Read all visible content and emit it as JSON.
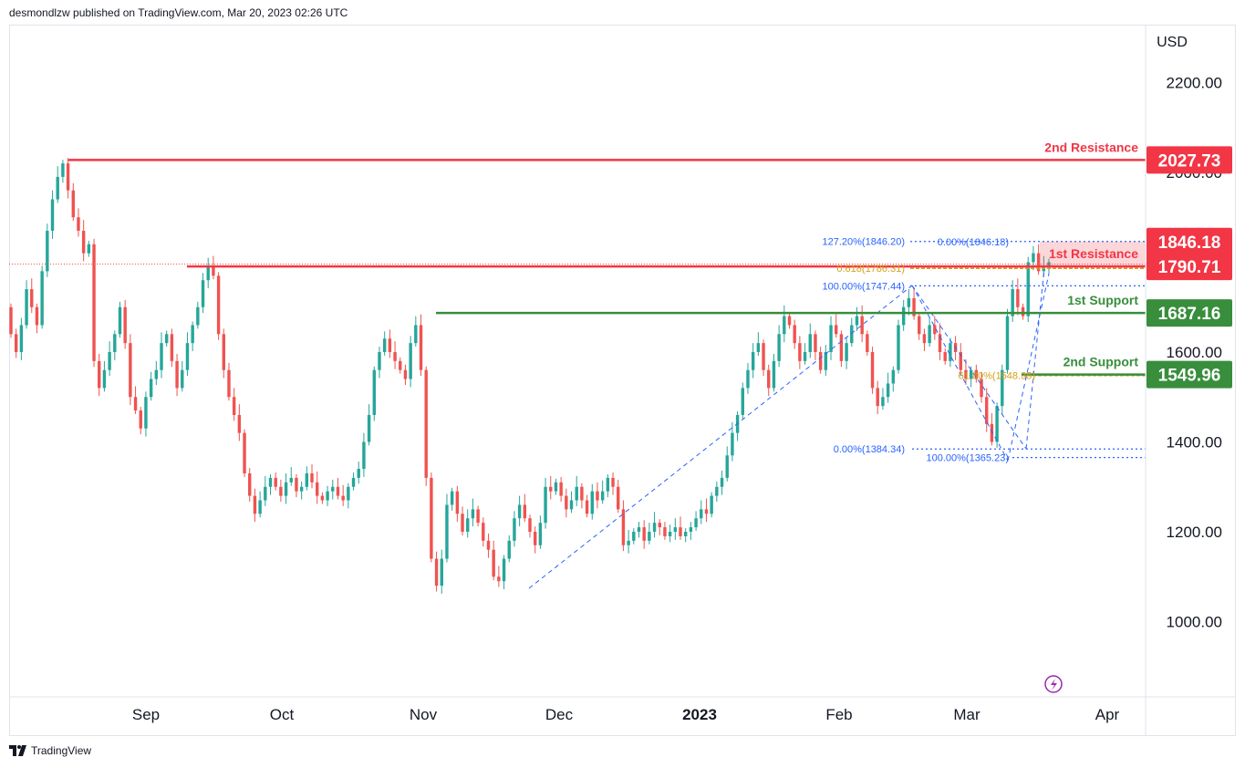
{
  "header": {
    "publisher": "desmondlzw published on TradingView.com, Mar 20, 2023 02:26 UTC"
  },
  "footer": {
    "brand": "TradingView"
  },
  "chart_data": {
    "type": "candlestick",
    "currency": "USD",
    "y_ticks": [
      "2200.00",
      "2000.00",
      "1600.00",
      "1400.00",
      "1200.00",
      "1000.00"
    ],
    "y_tick_values": [
      2200,
      2000,
      1600,
      1400,
      1200,
      1000
    ],
    "x_ticks": [
      "Sep",
      "Oct",
      "Nov",
      "Dec",
      "2023",
      "Feb",
      "Mar",
      "Apr"
    ],
    "ylim": [
      810,
      2340
    ],
    "colors": {
      "up": "#26a69a",
      "down": "#ef5350",
      "resistance": "#f23645",
      "support": "#388e3c",
      "fib": "#2962ff",
      "fib_gold": "#d4a017"
    },
    "levels": [
      {
        "name": "2nd Resistance",
        "value": 2027.73,
        "price_label": "2027.73",
        "color": "#f23645"
      },
      {
        "name": "1st Resistance",
        "value": 1790.71,
        "price_label": "1790.71",
        "color": "#f23645"
      },
      {
        "name": "",
        "value": 1846.18,
        "price_label": "1846.18",
        "color": "#f23645"
      },
      {
        "name": "1st Support",
        "value": 1687.16,
        "price_label": "1687.16",
        "color": "#388e3c"
      },
      {
        "name": "2nd Support",
        "value": 1549.96,
        "price_label": "1549.96",
        "color": "#388e3c"
      }
    ],
    "fib_labels": [
      {
        "text": "127.20%(1846.20)",
        "value": 1846.2,
        "color": "#2962ff"
      },
      {
        "text": "0.00%(1846.18)",
        "value": 1846.18,
        "color": "#2962ff"
      },
      {
        "text": "0.618(1786.31)",
        "value": 1786.31,
        "color": "#d4a017"
      },
      {
        "text": "100.00%(1747.44)",
        "value": 1747.44,
        "color": "#2962ff"
      },
      {
        "text": "61.80%(1548.35)",
        "value": 1548.35,
        "color": "#d4a017"
      },
      {
        "text": "0.00%(1384.34)",
        "value": 1384.34,
        "color": "#2962ff"
      },
      {
        "text": "100.00%(1365.23)",
        "value": 1365.23,
        "color": "#2962ff"
      }
    ],
    "candles": [
      [
        1700,
        1640
      ],
      [
        1640,
        1600
      ],
      [
        1600,
        1660
      ],
      [
        1660,
        1740
      ],
      [
        1740,
        1700
      ],
      [
        1700,
        1660
      ],
      [
        1660,
        1780
      ],
      [
        1780,
        1870
      ],
      [
        1870,
        1940
      ],
      [
        1940,
        1990
      ],
      [
        1990,
        2020
      ],
      [
        2020,
        1960
      ],
      [
        1960,
        1900
      ],
      [
        1900,
        1870
      ],
      [
        1870,
        1820
      ],
      [
        1820,
        1840
      ],
      [
        1840,
        1580
      ],
      [
        1580,
        1520
      ],
      [
        1520,
        1560
      ],
      [
        1560,
        1600
      ],
      [
        1600,
        1640
      ],
      [
        1640,
        1700
      ],
      [
        1700,
        1620
      ],
      [
        1620,
        1500
      ],
      [
        1500,
        1470
      ],
      [
        1470,
        1430
      ],
      [
        1430,
        1500
      ],
      [
        1500,
        1540
      ],
      [
        1540,
        1560
      ],
      [
        1560,
        1620
      ],
      [
        1620,
        1640
      ],
      [
        1640,
        1580
      ],
      [
        1580,
        1520
      ],
      [
        1520,
        1560
      ],
      [
        1560,
        1620
      ],
      [
        1620,
        1660
      ],
      [
        1660,
        1700
      ],
      [
        1700,
        1760
      ],
      [
        1760,
        1790
      ],
      [
        1790,
        1770
      ],
      [
        1770,
        1640
      ],
      [
        1640,
        1560
      ],
      [
        1560,
        1500
      ],
      [
        1500,
        1460
      ],
      [
        1460,
        1420
      ],
      [
        1420,
        1330
      ],
      [
        1330,
        1280
      ],
      [
        1280,
        1240
      ],
      [
        1240,
        1270
      ],
      [
        1270,
        1300
      ],
      [
        1300,
        1320
      ],
      [
        1320,
        1300
      ],
      [
        1300,
        1280
      ],
      [
        1280,
        1310
      ],
      [
        1310,
        1320
      ],
      [
        1320,
        1290
      ],
      [
        1290,
        1300
      ],
      [
        1300,
        1330
      ],
      [
        1330,
        1310
      ],
      [
        1310,
        1280
      ],
      [
        1280,
        1270
      ],
      [
        1270,
        1290
      ],
      [
        1290,
        1300
      ],
      [
        1300,
        1280
      ],
      [
        1280,
        1270
      ],
      [
        1270,
        1300
      ],
      [
        1300,
        1320
      ],
      [
        1320,
        1340
      ],
      [
        1340,
        1400
      ],
      [
        1400,
        1460
      ],
      [
        1460,
        1560
      ],
      [
        1560,
        1600
      ],
      [
        1600,
        1630
      ],
      [
        1630,
        1600
      ],
      [
        1600,
        1580
      ],
      [
        1580,
        1560
      ],
      [
        1560,
        1540
      ],
      [
        1540,
        1620
      ],
      [
        1620,
        1660
      ],
      [
        1660,
        1560
      ],
      [
        1560,
        1320
      ],
      [
        1320,
        1140
      ],
      [
        1140,
        1080
      ],
      [
        1080,
        1140
      ],
      [
        1140,
        1260
      ],
      [
        1260,
        1290
      ],
      [
        1290,
        1240
      ],
      [
        1240,
        1200
      ],
      [
        1200,
        1230
      ],
      [
        1230,
        1250
      ],
      [
        1250,
        1220
      ],
      [
        1220,
        1180
      ],
      [
        1180,
        1160
      ],
      [
        1160,
        1100
      ],
      [
        1100,
        1090
      ],
      [
        1090,
        1140
      ],
      [
        1140,
        1180
      ],
      [
        1180,
        1230
      ],
      [
        1230,
        1260
      ],
      [
        1260,
        1230
      ],
      [
        1230,
        1200
      ],
      [
        1200,
        1170
      ],
      [
        1170,
        1220
      ],
      [
        1220,
        1300
      ],
      [
        1300,
        1290
      ],
      [
        1290,
        1310
      ],
      [
        1310,
        1280
      ],
      [
        1280,
        1250
      ],
      [
        1250,
        1270
      ],
      [
        1270,
        1300
      ],
      [
        1300,
        1270
      ],
      [
        1270,
        1240
      ],
      [
        1240,
        1290
      ],
      [
        1290,
        1270
      ],
      [
        1270,
        1290
      ],
      [
        1290,
        1320
      ],
      [
        1320,
        1300
      ],
      [
        1300,
        1250
      ],
      [
        1250,
        1170
      ],
      [
        1170,
        1180
      ],
      [
        1180,
        1200
      ],
      [
        1200,
        1210
      ],
      [
        1210,
        1180
      ],
      [
        1180,
        1200
      ],
      [
        1200,
        1220
      ],
      [
        1220,
        1210
      ],
      [
        1210,
        1190
      ],
      [
        1190,
        1200
      ],
      [
        1200,
        1210
      ],
      [
        1210,
        1190
      ],
      [
        1190,
        1200
      ],
      [
        1200,
        1210
      ],
      [
        1210,
        1230
      ],
      [
        1230,
        1250
      ],
      [
        1250,
        1240
      ],
      [
        1240,
        1280
      ],
      [
        1280,
        1300
      ],
      [
        1300,
        1320
      ],
      [
        1320,
        1370
      ],
      [
        1370,
        1420
      ],
      [
        1420,
        1460
      ],
      [
        1460,
        1520
      ],
      [
        1520,
        1560
      ],
      [
        1560,
        1600
      ],
      [
        1600,
        1620
      ],
      [
        1620,
        1560
      ],
      [
        1560,
        1520
      ],
      [
        1520,
        1580
      ],
      [
        1580,
        1640
      ],
      [
        1640,
        1680
      ],
      [
        1680,
        1660
      ],
      [
        1660,
        1620
      ],
      [
        1620,
        1580
      ],
      [
        1580,
        1600
      ],
      [
        1600,
        1640
      ],
      [
        1640,
        1600
      ],
      [
        1600,
        1560
      ],
      [
        1560,
        1600
      ],
      [
        1600,
        1660
      ],
      [
        1660,
        1640
      ],
      [
        1640,
        1580
      ],
      [
        1580,
        1620
      ],
      [
        1620,
        1660
      ],
      [
        1660,
        1680
      ],
      [
        1680,
        1640
      ],
      [
        1640,
        1600
      ],
      [
        1600,
        1520
      ],
      [
        1520,
        1480
      ],
      [
        1480,
        1500
      ],
      [
        1500,
        1530
      ],
      [
        1530,
        1560
      ],
      [
        1560,
        1660
      ],
      [
        1660,
        1700
      ],
      [
        1700,
        1720
      ],
      [
        1720,
        1680
      ],
      [
        1680,
        1640
      ],
      [
        1640,
        1620
      ],
      [
        1620,
        1660
      ],
      [
        1660,
        1640
      ],
      [
        1640,
        1600
      ],
      [
        1600,
        1580
      ],
      [
        1580,
        1620
      ],
      [
        1620,
        1600
      ],
      [
        1600,
        1560
      ],
      [
        1560,
        1540
      ],
      [
        1540,
        1560
      ],
      [
        1560,
        1540
      ],
      [
        1540,
        1500
      ],
      [
        1500,
        1440
      ],
      [
        1440,
        1400
      ],
      [
        1400,
        1480
      ],
      [
        1480,
        1560
      ],
      [
        1560,
        1680
      ],
      [
        1680,
        1740
      ],
      [
        1740,
        1700
      ],
      [
        1700,
        1680
      ],
      [
        1680,
        1800
      ],
      [
        1800,
        1820
      ],
      [
        1820,
        1780
      ],
      [
        1780,
        1790
      ],
      [
        1790,
        1800
      ]
    ]
  }
}
